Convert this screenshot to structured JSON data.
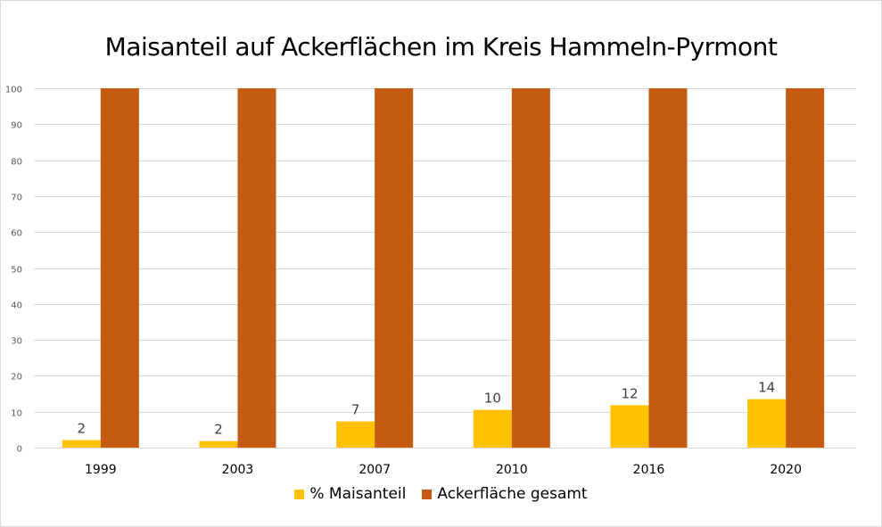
{
  "chart_data": {
    "type": "bar",
    "title": "Maisanteil auf Ackerflächen im Kreis Hammeln-Pyrmont",
    "xlabel": "",
    "ylabel": "",
    "categories": [
      "1999",
      "2003",
      "2007",
      "2010",
      "2016",
      "2020"
    ],
    "series": [
      {
        "name": "% Maisanteil",
        "color": "#FFC000",
        "values": [
          2.1,
          1.8,
          7.3,
          10.5,
          11.8,
          13.5
        ],
        "labels": [
          "2",
          "2",
          "7",
          "10",
          "12",
          "14"
        ]
      },
      {
        "name": "Ackerfläche gesamt",
        "color": "#C55A11",
        "values": [
          100,
          100,
          100,
          100,
          100,
          100
        ]
      }
    ],
    "ylim": [
      0,
      100
    ],
    "yticks": [
      "0",
      "10",
      "20",
      "30",
      "40",
      "50",
      "60",
      "70",
      "80",
      "90",
      "100"
    ],
    "grid": true,
    "legend_position": "bottom",
    "gridline_color": "#d9d9d9"
  }
}
